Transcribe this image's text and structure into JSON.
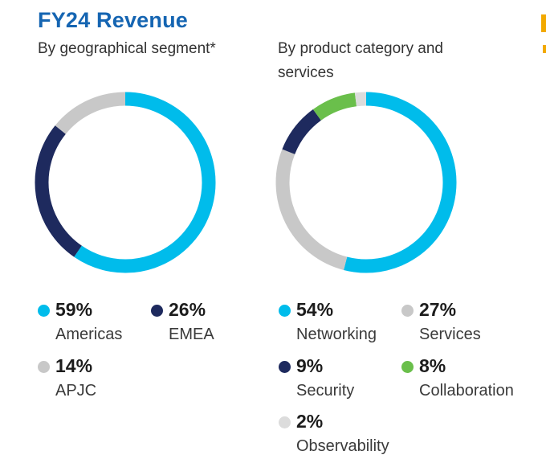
{
  "title": "FY24 Revenue",
  "chart_data": [
    {
      "type": "pie",
      "subtitle": "By geographical segment*",
      "slices": [
        {
          "label": "Americas",
          "value": 59,
          "display": "59%",
          "color": "#00bceb"
        },
        {
          "label": "EMEA",
          "value": 26,
          "display": "26%",
          "color": "#1e2a5e"
        },
        {
          "label": "APJC",
          "value": 14,
          "display": "14%",
          "color": "#c8c8c8"
        }
      ]
    },
    {
      "type": "pie",
      "subtitle": "By product category and services",
      "slices": [
        {
          "label": "Networking",
          "value": 54,
          "display": "54%",
          "color": "#00bceb"
        },
        {
          "label": "Services",
          "value": 27,
          "display": "27%",
          "color": "#c8c8c8"
        },
        {
          "label": "Security",
          "value": 9,
          "display": "9%",
          "color": "#1e2a5e"
        },
        {
          "label": "Collaboration",
          "value": 8,
          "display": "8%",
          "color": "#6abf4b"
        },
        {
          "label": "Observability",
          "value": 2,
          "display": "2%",
          "color": "#dcdcdc"
        }
      ]
    }
  ]
}
